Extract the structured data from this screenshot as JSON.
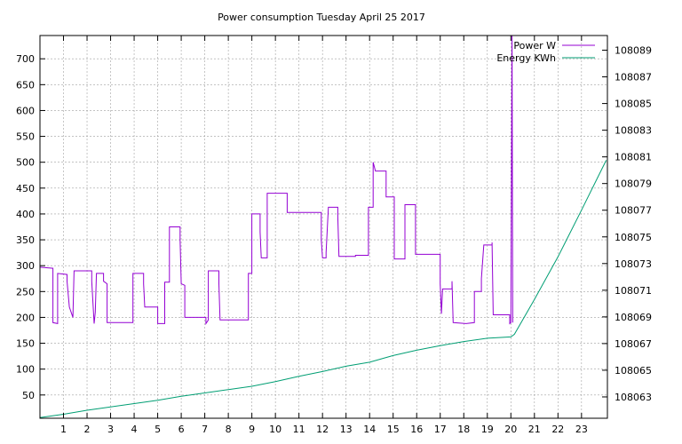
{
  "chart_data": {
    "type": "line",
    "title": "Power consumption Tuesday April 25 2017",
    "xlabel": "",
    "ylabel": "",
    "x_ticks": [
      "1",
      "2",
      "3",
      "4",
      "5",
      "6",
      "7",
      "8",
      "9",
      "10",
      "11",
      "12",
      "13",
      "14",
      "15",
      "16",
      "17",
      "18",
      "19",
      "20",
      "21",
      "22",
      "23"
    ],
    "xlim": [
      0,
      24.1
    ],
    "ylim": [
      5,
      745
    ],
    "y_ticks": [
      50,
      100,
      150,
      200,
      250,
      300,
      350,
      400,
      450,
      500,
      550,
      600,
      650,
      700
    ],
    "y2lim": [
      108061.4,
      108090.1
    ],
    "y2_ticks": [
      108063,
      108065,
      108067,
      108069,
      108071,
      108073,
      108075,
      108077,
      108079,
      108081,
      108083,
      108085,
      108087,
      108089
    ],
    "grid": true,
    "legend_position": "top-right",
    "series": [
      {
        "name": "Power W",
        "color": "#9400d3",
        "axis": "left",
        "step": true,
        "points": [
          [
            0,
            297
          ],
          [
            0.55,
            295
          ],
          [
            0.55,
            190
          ],
          [
            0.75,
            188
          ],
          [
            0.75,
            285
          ],
          [
            1.15,
            283
          ],
          [
            1.15,
            270
          ],
          [
            1.25,
            220
          ],
          [
            1.4,
            200
          ],
          [
            1.45,
            290
          ],
          [
            2.2,
            290
          ],
          [
            2.2,
            270
          ],
          [
            2.3,
            188
          ],
          [
            2.35,
            210
          ],
          [
            2.4,
            285
          ],
          [
            2.7,
            285
          ],
          [
            2.7,
            270
          ],
          [
            2.85,
            265
          ],
          [
            2.85,
            190
          ],
          [
            3.95,
            190
          ],
          [
            3.95,
            285
          ],
          [
            4.4,
            285
          ],
          [
            4.4,
            265
          ],
          [
            4.45,
            220
          ],
          [
            5.0,
            220
          ],
          [
            5.0,
            188
          ],
          [
            5.3,
            188
          ],
          [
            5.3,
            268
          ],
          [
            5.5,
            268
          ],
          [
            5.5,
            375
          ],
          [
            5.95,
            375
          ],
          [
            5.95,
            350
          ],
          [
            6.0,
            265
          ],
          [
            6.15,
            262
          ],
          [
            6.15,
            200
          ],
          [
            7.05,
            200
          ],
          [
            7.05,
            188
          ],
          [
            7.15,
            195
          ],
          [
            7.15,
            290
          ],
          [
            7.6,
            290
          ],
          [
            7.6,
            265
          ],
          [
            7.65,
            195
          ],
          [
            8.85,
            195
          ],
          [
            8.85,
            285
          ],
          [
            9.0,
            285
          ],
          [
            9.0,
            400
          ],
          [
            9.35,
            400
          ],
          [
            9.35,
            365
          ],
          [
            9.4,
            315
          ],
          [
            9.65,
            315
          ],
          [
            9.65,
            440
          ],
          [
            10.5,
            440
          ],
          [
            10.5,
            403
          ],
          [
            11.95,
            403
          ],
          [
            11.95,
            350
          ],
          [
            12.0,
            315
          ],
          [
            12.15,
            315
          ],
          [
            12.15,
            325
          ],
          [
            12.25,
            413
          ],
          [
            12.65,
            413
          ],
          [
            12.65,
            395
          ],
          [
            12.7,
            318
          ],
          [
            13.4,
            318
          ],
          [
            13.4,
            320
          ],
          [
            13.95,
            320
          ],
          [
            13.95,
            413
          ],
          [
            14.15,
            413
          ],
          [
            14.15,
            500
          ],
          [
            14.25,
            483
          ],
          [
            14.7,
            483
          ],
          [
            14.7,
            433
          ],
          [
            15.05,
            433
          ],
          [
            15.05,
            313
          ],
          [
            15.5,
            313
          ],
          [
            15.5,
            418
          ],
          [
            15.95,
            418
          ],
          [
            15.95,
            322
          ],
          [
            17.0,
            322
          ],
          [
            17.0,
            265
          ],
          [
            17.05,
            207
          ],
          [
            17.1,
            255
          ],
          [
            17.5,
            255
          ],
          [
            17.5,
            270
          ],
          [
            17.55,
            190
          ],
          [
            18.1,
            188
          ],
          [
            18.1,
            188
          ],
          [
            18.45,
            190
          ],
          [
            18.45,
            250
          ],
          [
            18.75,
            250
          ],
          [
            18.75,
            275
          ],
          [
            18.85,
            340
          ],
          [
            19.2,
            340
          ],
          [
            19.2,
            345
          ],
          [
            19.25,
            205
          ],
          [
            19.95,
            205
          ],
          [
            19.95,
            188
          ],
          [
            20.0,
            190
          ],
          [
            20.05,
            745
          ],
          [
            20.08,
            190
          ]
        ]
      },
      {
        "name": "Energy KWh",
        "color": "#009e73",
        "axis": "right",
        "step": false,
        "points": [
          [
            0,
            108061.45
          ],
          [
            1,
            108061.7
          ],
          [
            2,
            108062.0
          ],
          [
            3,
            108062.25
          ],
          [
            4,
            108062.5
          ],
          [
            5,
            108062.75
          ],
          [
            6,
            108063.05
          ],
          [
            7,
            108063.3
          ],
          [
            8,
            108063.55
          ],
          [
            9,
            108063.8
          ],
          [
            10,
            108064.15
          ],
          [
            11,
            108064.55
          ],
          [
            12,
            108064.9
          ],
          [
            13,
            108065.3
          ],
          [
            14,
            108065.6
          ],
          [
            15,
            108066.1
          ],
          [
            16,
            108066.5
          ],
          [
            17,
            108066.85
          ],
          [
            18,
            108067.15
          ],
          [
            19,
            108067.4
          ],
          [
            20,
            108067.5
          ],
          [
            20.15,
            108067.7
          ],
          [
            21,
            108070.3
          ],
          [
            22,
            108073.5
          ],
          [
            23,
            108077.0
          ],
          [
            24.05,
            108080.75
          ]
        ]
      }
    ]
  }
}
